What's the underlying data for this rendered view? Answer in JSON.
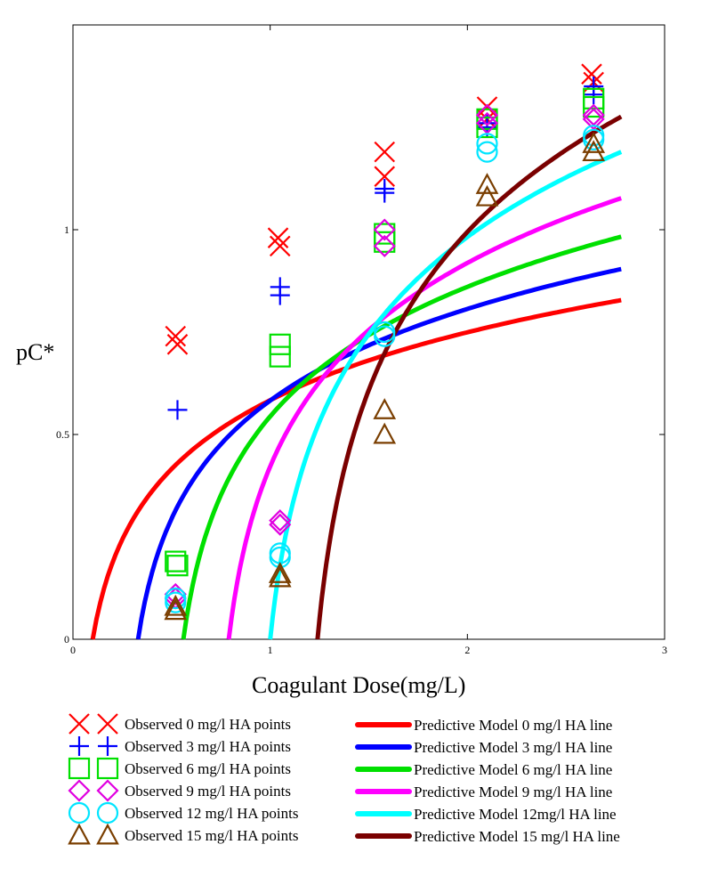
{
  "chart_data": {
    "type": "scatter",
    "xlabel": "Coagulant Dose(mg/L)",
    "ylabel": "pC*",
    "xlim": [
      0,
      3
    ],
    "ylim": [
      0,
      1.5
    ],
    "x_ticks": [
      "0",
      "1",
      "2",
      "3"
    ],
    "y_ticks": [
      "0",
      "0.5",
      "1"
    ],
    "x_tick_values": [
      0,
      1,
      2,
      3
    ],
    "y_tick_values": [
      0,
      0.5,
      1
    ],
    "grid": false,
    "legend_position": "bottom",
    "point_series": [
      {
        "name": "Observed 0 mg/l HA points",
        "marker": "x",
        "color": "#ff0000",
        "points": [
          [
            0.52,
            0.74
          ],
          [
            0.53,
            0.72
          ],
          [
            1.04,
            0.98
          ],
          [
            1.05,
            0.96
          ],
          [
            1.58,
            1.19
          ],
          [
            1.58,
            1.13
          ],
          [
            2.1,
            1.3
          ],
          [
            2.1,
            1.27
          ],
          [
            2.63,
            1.38
          ],
          [
            2.64,
            1.36
          ]
        ]
      },
      {
        "name": "Observed 3 mg/l HA points",
        "marker": "plus",
        "color": "#0000ff",
        "points": [
          [
            0.53,
            0.56
          ],
          [
            1.05,
            0.86
          ],
          [
            1.05,
            0.84
          ],
          [
            1.58,
            1.1
          ],
          [
            1.58,
            1.09
          ],
          [
            2.1,
            1.25
          ],
          [
            2.1,
            1.26
          ],
          [
            2.64,
            1.33
          ],
          [
            2.64,
            1.35
          ]
        ]
      },
      {
        "name": "Observed 6 mg/l HA points",
        "marker": "square",
        "color": "#00e000",
        "points": [
          [
            0.52,
            0.19
          ],
          [
            0.53,
            0.18
          ],
          [
            1.05,
            0.72
          ],
          [
            1.05,
            0.69
          ],
          [
            1.58,
            0.99
          ],
          [
            1.58,
            0.97
          ],
          [
            2.1,
            1.27
          ],
          [
            2.1,
            1.25
          ],
          [
            2.64,
            1.32
          ],
          [
            2.64,
            1.3
          ]
        ]
      },
      {
        "name": "Observed 9 mg/l HA points",
        "marker": "diamond",
        "color": "#e000e0",
        "points": [
          [
            0.52,
            0.11
          ],
          [
            0.52,
            0.1
          ],
          [
            1.05,
            0.29
          ],
          [
            1.05,
            0.28
          ],
          [
            1.58,
            1.0
          ],
          [
            1.58,
            0.96
          ],
          [
            2.1,
            1.28
          ],
          [
            2.1,
            1.26
          ],
          [
            2.64,
            1.28
          ],
          [
            2.64,
            1.27
          ]
        ]
      },
      {
        "name": "Observed 12 mg/l HA points",
        "marker": "circle",
        "color": "#00e5ff",
        "points": [
          [
            0.52,
            0.1
          ],
          [
            0.52,
            0.09
          ],
          [
            1.05,
            0.21
          ],
          [
            1.05,
            0.2
          ],
          [
            1.58,
            0.75
          ],
          [
            1.58,
            0.74
          ],
          [
            2.1,
            1.21
          ],
          [
            2.1,
            1.19
          ],
          [
            2.64,
            1.23
          ],
          [
            2.64,
            1.22
          ]
        ]
      },
      {
        "name": "Observed 15 mg/l HA points",
        "marker": "triangle",
        "color": "#7a3e00",
        "points": [
          [
            0.52,
            0.08
          ],
          [
            0.52,
            0.07
          ],
          [
            1.05,
            0.16
          ],
          [
            1.05,
            0.15
          ],
          [
            1.58,
            0.56
          ],
          [
            1.58,
            0.5
          ],
          [
            2.1,
            1.11
          ],
          [
            2.1,
            1.08
          ],
          [
            2.64,
            1.21
          ],
          [
            2.64,
            1.19
          ]
        ]
      }
    ],
    "line_series": [
      {
        "name": "Predictive Model 0 mg/l HA line",
        "color": "#ff0000",
        "x0": 0.1,
        "a": 0.828
      },
      {
        "name": "Predictive Model 3 mg/l HA line",
        "color": "#0000ff",
        "x0": 0.33,
        "a": 0.904
      },
      {
        "name": "Predictive Model 6 mg/l HA line",
        "color": "#00e000",
        "x0": 0.56,
        "a": 0.983
      },
      {
        "name": "Predictive Model 9 mg/l HA line",
        "color": "#ff00ff",
        "x0": 0.79,
        "a": 1.077
      },
      {
        "name": "Predictive Model 12mg/l HA line",
        "color": "#00ffff",
        "x0": 1.0,
        "a": 1.19
      },
      {
        "name": "Predictive Model 15 mg/l HA line",
        "color": "#7a0000",
        "x0": 1.24,
        "a": 1.276
      }
    ],
    "line_x_max": 2.78
  }
}
